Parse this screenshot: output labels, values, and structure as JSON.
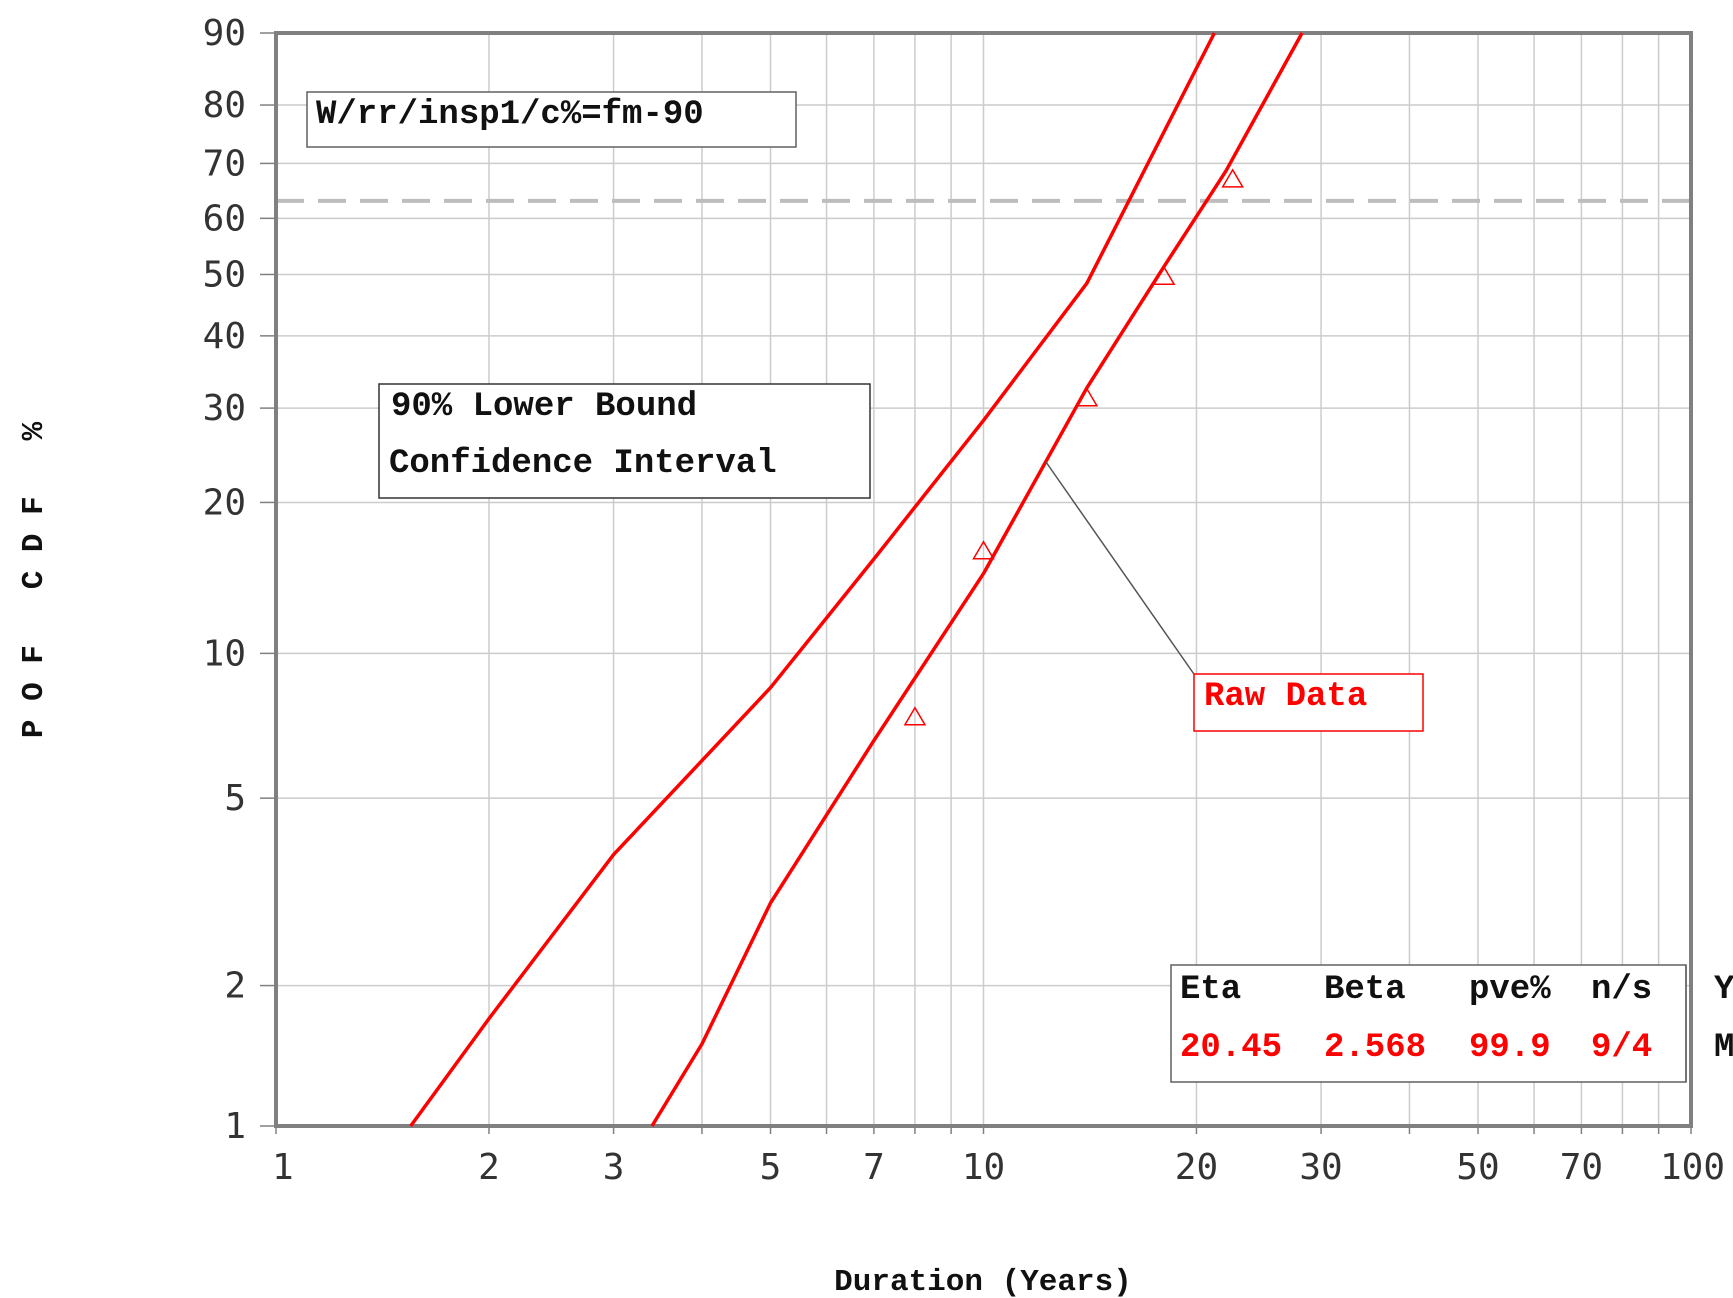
{
  "chart_data": {
    "type": "line",
    "title": "",
    "xlabel": "Duration (Years)",
    "ylabel": "P O F   C D F   %",
    "x_scale": "log",
    "y_scale": "weibull",
    "xlim": [
      1,
      100
    ],
    "ylim": [
      1,
      90
    ],
    "grid": true,
    "x_ticks": [
      {
        "v": 1,
        "label": "1"
      },
      {
        "v": 2,
        "label": "2"
      },
      {
        "v": 3,
        "label": "3"
      },
      {
        "v": 5,
        "label": "5"
      },
      {
        "v": 7,
        "label": "7"
      },
      {
        "v": 10,
        "label": "10"
      },
      {
        "v": 20,
        "label": "20"
      },
      {
        "v": 30,
        "label": "30"
      },
      {
        "v": 50,
        "label": "50"
      },
      {
        "v": 70,
        "label": "70"
      },
      {
        "v": 100,
        "label": "100"
      }
    ],
    "x_minor": [
      4,
      6,
      8,
      9,
      40,
      60,
      80,
      90
    ],
    "y_ticks": [
      {
        "v": 1,
        "label": "1"
      },
      {
        "v": 2,
        "label": "2"
      },
      {
        "v": 5,
        "label": "5"
      },
      {
        "v": 10,
        "label": "10"
      },
      {
        "v": 20,
        "label": "20"
      },
      {
        "v": 30,
        "label": "30"
      },
      {
        "v": 40,
        "label": "40"
      },
      {
        "v": 50,
        "label": "50"
      },
      {
        "v": 60,
        "label": "60"
      },
      {
        "v": 70,
        "label": "70"
      },
      {
        "v": 80,
        "label": "80"
      },
      {
        "v": 90,
        "label": "90"
      }
    ],
    "reference_line_y": 63.2,
    "series": [
      {
        "kind": "fit",
        "x": [
          3.4,
          4,
          5,
          7,
          10,
          14,
          18,
          22,
          28.2
        ],
        "y": [
          1,
          1.5,
          3,
          6.6,
          14.5,
          32.6,
          51.4,
          68.6,
          90
        ]
      },
      {
        "name": "90% Lower Bound Confidence Interval",
        "kind": "bound",
        "x": [
          1.55,
          2,
          3,
          5,
          7,
          10,
          14,
          17,
          21.2
        ],
        "y": [
          1,
          1.7,
          3.8,
          8.5,
          15.5,
          28.5,
          48.5,
          69.5,
          90
        ]
      },
      {
        "name": "Raw Data",
        "kind": "points",
        "x": [
          8,
          10,
          14,
          18,
          22.5
        ],
        "y": [
          7.4,
          16.1,
          31.3,
          49.7,
          67.2
        ]
      }
    ],
    "annotations": {
      "id_label": "W/rr/insp1/c%=fm-90",
      "bound_label_line1": "90% Lower Bound",
      "bound_label_line2": "Confidence Interval",
      "raw_label": "Raw Data"
    },
    "stats": {
      "headers": [
        "Eta",
        "Beta",
        "pve%",
        "n/s"
      ],
      "values": [
        "20.45",
        "2.568",
        "99.9",
        "9/4"
      ],
      "extra_header": "Y",
      "extra_value": "M"
    },
    "colors": {
      "fit": "#ff0000",
      "grid": "#cccccc",
      "frame": "#808080",
      "reference": "#bdbdbd",
      "stats_values": "#ff0000"
    }
  }
}
